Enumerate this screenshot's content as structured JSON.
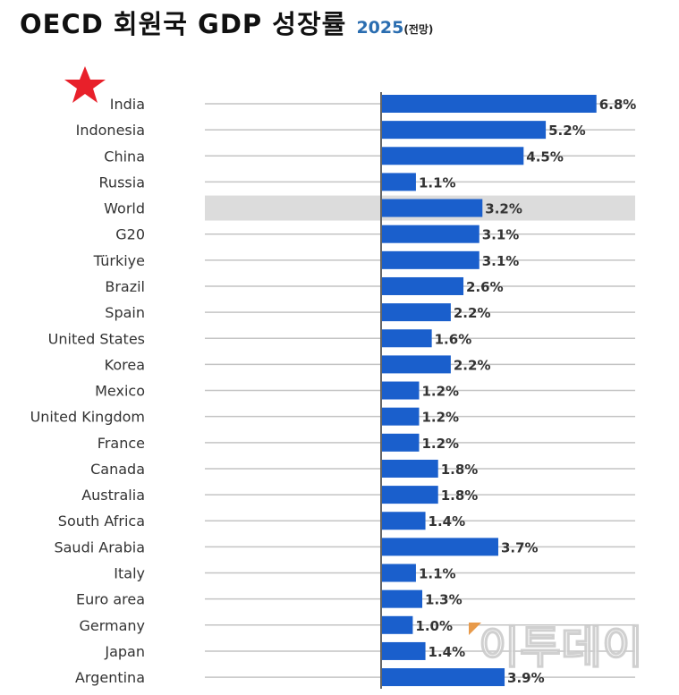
{
  "chart_data": {
    "type": "bar",
    "orientation": "horizontal",
    "title": "OECD 회원국 GDP 성장률",
    "title_year": "2025",
    "title_note": "(전망)",
    "categories": [
      "India",
      "Indonesia",
      "China",
      "Russia",
      "World",
      "G20",
      "Türkiye",
      "Brazil",
      "Spain",
      "United States",
      "Korea",
      "Mexico",
      "United Kingdom",
      "France",
      "Canada",
      "Australia",
      "South Africa",
      "Saudi Arabia",
      "Italy",
      "Euro area",
      "Germany",
      "Japan",
      "Argentina"
    ],
    "values": [
      6.8,
      5.2,
      4.5,
      1.1,
      3.2,
      3.1,
      3.1,
      2.6,
      2.2,
      1.6,
      2.2,
      1.2,
      1.2,
      1.2,
      1.8,
      1.8,
      1.4,
      3.7,
      1.1,
      1.3,
      1.0,
      1.4,
      3.9
    ],
    "value_labels": [
      "6.8%",
      "5.2%",
      "4.5%",
      "1.1%",
      "3.2%",
      "3.1%",
      "3.1%",
      "2.6%",
      "2.2%",
      "1.6%",
      "2.2%",
      "1.2%",
      "1.2%",
      "1.2%",
      "1.8%",
      "1.8%",
      "1.4%",
      "3.7%",
      "1.1%",
      "1.3%",
      "1.0%",
      "1.4%",
      "3.9%"
    ],
    "highlighted_category": "World",
    "starred_category": "India",
    "unit": "%",
    "bar_color": "#1a5fcc",
    "highlight_color": "#dcdcdc",
    "star_color": "#e8202a",
    "grid": true
  },
  "watermark": "이투데이"
}
